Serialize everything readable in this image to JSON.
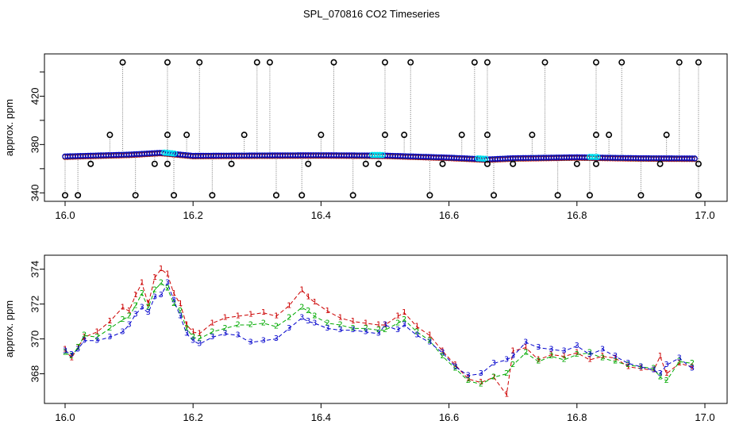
{
  "chart_data": [
    {
      "type": "scatter",
      "title": "SPL_070816  CO2 Timeseries",
      "xlabel": "",
      "ylabel": "approx. ppm",
      "xlim": [
        16.0,
        17.0
      ],
      "ylim": [
        333,
        455
      ],
      "xticks": [
        "16.0",
        "16.2",
        "16.4",
        "16.6",
        "16.8",
        "17.0"
      ],
      "xtick_values": [
        16.0,
        16.2,
        16.4,
        16.6,
        16.8,
        17.0
      ],
      "yticks": [
        "340",
        "380",
        "420"
      ],
      "ytick_values": [
        340,
        380,
        420
      ],
      "yticks_minor": [
        360,
        400,
        440
      ],
      "grid": false,
      "colors": {
        "series1": "#cc0000",
        "series2": "#00aa00",
        "series3": "#0000cc",
        "highlight": "#00e5ee",
        "outlier": "#000000",
        "trace": "#777777"
      },
      "series": [
        {
          "values": [
            [
              16.0,
              370.0
            ],
            [
              16.1,
              371.5
            ],
            [
              16.15,
              373.0
            ],
            [
              16.2,
              370.5
            ],
            [
              16.3,
              370.8
            ],
            [
              16.4,
              371.0
            ],
            [
              16.5,
              370.7
            ],
            [
              16.6,
              369.0
            ],
            [
              16.66,
              367.5
            ],
            [
              16.7,
              368.5
            ],
            [
              16.8,
              369.3
            ],
            [
              16.9,
              368.5
            ],
            [
              16.98,
              368.3
            ]
          ]
        }
      ],
      "outliers": [
        [
          16.0,
          338
        ],
        [
          16.02,
          338
        ],
        [
          16.04,
          364
        ],
        [
          16.07,
          388
        ],
        [
          16.09,
          448
        ],
        [
          16.11,
          338
        ],
        [
          16.14,
          364
        ],
        [
          16.16,
          364
        ],
        [
          16.16,
          388
        ],
        [
          16.16,
          448
        ],
        [
          16.17,
          338
        ],
        [
          16.19,
          388
        ],
        [
          16.21,
          448
        ],
        [
          16.23,
          338
        ],
        [
          16.26,
          364
        ],
        [
          16.28,
          388
        ],
        [
          16.3,
          448
        ],
        [
          16.32,
          448
        ],
        [
          16.33,
          338
        ],
        [
          16.37,
          338
        ],
        [
          16.38,
          364
        ],
        [
          16.4,
          388
        ],
        [
          16.42,
          448
        ],
        [
          16.45,
          338
        ],
        [
          16.47,
          364
        ],
        [
          16.49,
          364
        ],
        [
          16.5,
          388
        ],
        [
          16.5,
          448
        ],
        [
          16.53,
          388
        ],
        [
          16.54,
          448
        ],
        [
          16.57,
          338
        ],
        [
          16.59,
          364
        ],
        [
          16.62,
          388
        ],
        [
          16.64,
          448
        ],
        [
          16.66,
          388
        ],
        [
          16.66,
          448
        ],
        [
          16.66,
          364
        ],
        [
          16.67,
          338
        ],
        [
          16.7,
          364
        ],
        [
          16.73,
          388
        ],
        [
          16.75,
          448
        ],
        [
          16.77,
          338
        ],
        [
          16.8,
          364
        ],
        [
          16.82,
          338
        ],
        [
          16.83,
          364
        ],
        [
          16.83,
          388
        ],
        [
          16.83,
          448
        ],
        [
          16.85,
          388
        ],
        [
          16.87,
          448
        ],
        [
          16.9,
          338
        ],
        [
          16.93,
          364
        ],
        [
          16.94,
          388
        ],
        [
          16.96,
          448
        ],
        [
          16.99,
          448
        ],
        [
          16.99,
          364
        ],
        [
          16.99,
          338
        ]
      ]
    },
    {
      "type": "scatter",
      "title": "",
      "xlabel": "",
      "ylabel": "approx. ppm",
      "xlim": [
        16.0,
        17.0
      ],
      "ylim": [
        366.3,
        374.8
      ],
      "xticks": [
        "16.0",
        "16.2",
        "16.4",
        "16.6",
        "16.8",
        "17.0"
      ],
      "xtick_values": [
        16.0,
        16.2,
        16.4,
        16.6,
        16.8,
        17.0
      ],
      "yticks": [
        "368",
        "370",
        "372",
        "374"
      ],
      "ytick_values": [
        368,
        370,
        372,
        374
      ],
      "grid": false,
      "series": [
        {
          "name": "1",
          "color": "#cc0000",
          "values": [
            [
              16.0,
              369.4
            ],
            [
              16.01,
              368.9
            ],
            [
              16.02,
              369.5
            ],
            [
              16.03,
              370.1
            ],
            [
              16.05,
              370.4
            ],
            [
              16.07,
              371.0
            ],
            [
              16.09,
              371.8
            ],
            [
              16.1,
              371.6
            ],
            [
              16.11,
              372.5
            ],
            [
              16.12,
              373.2
            ],
            [
              16.13,
              372.0
            ],
            [
              16.14,
              373.5
            ],
            [
              16.15,
              374.0
            ],
            [
              16.16,
              373.7
            ],
            [
              16.17,
              372.6
            ],
            [
              16.18,
              372.0
            ],
            [
              16.19,
              370.8
            ],
            [
              16.2,
              370.4
            ],
            [
              16.21,
              370.3
            ],
            [
              16.23,
              370.9
            ],
            [
              16.25,
              371.2
            ],
            [
              16.27,
              371.3
            ],
            [
              16.29,
              371.4
            ],
            [
              16.31,
              371.5
            ],
            [
              16.33,
              371.3
            ],
            [
              16.35,
              371.9
            ],
            [
              16.37,
              372.8
            ],
            [
              16.38,
              372.4
            ],
            [
              16.39,
              372.1
            ],
            [
              16.41,
              371.6
            ],
            [
              16.43,
              371.2
            ],
            [
              16.45,
              371.0
            ],
            [
              16.47,
              370.9
            ],
            [
              16.49,
              370.8
            ],
            [
              16.5,
              370.8
            ],
            [
              16.52,
              371.3
            ],
            [
              16.53,
              371.5
            ],
            [
              16.55,
              370.7
            ],
            [
              16.57,
              370.2
            ],
            [
              16.59,
              369.3
            ],
            [
              16.61,
              368.5
            ],
            [
              16.63,
              367.7
            ],
            [
              16.65,
              367.5
            ],
            [
              16.67,
              367.8
            ],
            [
              16.69,
              366.8
            ],
            [
              16.7,
              369.3
            ],
            [
              16.72,
              369.5
            ],
            [
              16.74,
              368.8
            ],
            [
              16.76,
              369.1
            ],
            [
              16.78,
              369.0
            ],
            [
              16.8,
              369.2
            ],
            [
              16.82,
              368.8
            ],
            [
              16.84,
              369.0
            ],
            [
              16.86,
              368.9
            ],
            [
              16.88,
              368.4
            ],
            [
              16.9,
              368.3
            ],
            [
              16.92,
              368.2
            ],
            [
              16.93,
              369.0
            ],
            [
              16.94,
              368.0
            ],
            [
              16.96,
              368.6
            ],
            [
              16.98,
              368.4
            ]
          ]
        },
        {
          "name": "2",
          "color": "#00aa00",
          "values": [
            [
              16.0,
              369.2
            ],
            [
              16.01,
              369.0
            ],
            [
              16.02,
              369.5
            ],
            [
              16.03,
              370.2
            ],
            [
              16.05,
              370.1
            ],
            [
              16.07,
              370.6
            ],
            [
              16.09,
              371.1
            ],
            [
              16.1,
              371.3
            ],
            [
              16.11,
              371.9
            ],
            [
              16.12,
              372.6
            ],
            [
              16.13,
              371.8
            ],
            [
              16.14,
              372.8
            ],
            [
              16.15,
              373.2
            ],
            [
              16.16,
              372.9
            ],
            [
              16.17,
              372.0
            ],
            [
              16.18,
              371.6
            ],
            [
              16.19,
              370.6
            ],
            [
              16.2,
              370.1
            ],
            [
              16.21,
              370.0
            ],
            [
              16.23,
              370.4
            ],
            [
              16.25,
              370.6
            ],
            [
              16.27,
              370.8
            ],
            [
              16.29,
              370.8
            ],
            [
              16.31,
              370.9
            ],
            [
              16.33,
              370.7
            ],
            [
              16.35,
              371.2
            ],
            [
              16.37,
              371.8
            ],
            [
              16.38,
              371.6
            ],
            [
              16.39,
              371.3
            ],
            [
              16.41,
              370.9
            ],
            [
              16.43,
              370.8
            ],
            [
              16.45,
              370.6
            ],
            [
              16.47,
              370.6
            ],
            [
              16.49,
              370.5
            ],
            [
              16.5,
              370.5
            ],
            [
              16.52,
              370.9
            ],
            [
              16.53,
              371.1
            ],
            [
              16.55,
              370.4
            ],
            [
              16.57,
              369.9
            ],
            [
              16.59,
              369.0
            ],
            [
              16.61,
              368.3
            ],
            [
              16.63,
              367.6
            ],
            [
              16.65,
              367.4
            ],
            [
              16.67,
              367.8
            ],
            [
              16.69,
              368.0
            ],
            [
              16.7,
              368.5
            ],
            [
              16.72,
              369.2
            ],
            [
              16.74,
              368.7
            ],
            [
              16.76,
              369.0
            ],
            [
              16.78,
              368.8
            ],
            [
              16.8,
              369.1
            ],
            [
              16.82,
              369.2
            ],
            [
              16.84,
              368.9
            ],
            [
              16.86,
              368.7
            ],
            [
              16.88,
              368.5
            ],
            [
              16.9,
              368.4
            ],
            [
              16.92,
              368.3
            ],
            [
              16.93,
              367.8
            ],
            [
              16.94,
              367.6
            ],
            [
              16.96,
              368.7
            ],
            [
              16.98,
              368.6
            ]
          ]
        },
        {
          "name": "3",
          "color": "#0000cc",
          "values": [
            [
              16.0,
              369.3
            ],
            [
              16.01,
              369.1
            ],
            [
              16.02,
              369.4
            ],
            [
              16.03,
              369.9
            ],
            [
              16.05,
              369.9
            ],
            [
              16.07,
              370.1
            ],
            [
              16.09,
              370.4
            ],
            [
              16.1,
              370.8
            ],
            [
              16.11,
              371.4
            ],
            [
              16.12,
              371.8
            ],
            [
              16.13,
              371.5
            ],
            [
              16.14,
              372.4
            ],
            [
              16.15,
              372.5
            ],
            [
              16.16,
              373.2
            ],
            [
              16.17,
              372.2
            ],
            [
              16.18,
              371.3
            ],
            [
              16.19,
              370.3
            ],
            [
              16.2,
              369.9
            ],
            [
              16.21,
              369.7
            ],
            [
              16.23,
              370.1
            ],
            [
              16.25,
              370.3
            ],
            [
              16.27,
              370.2
            ],
            [
              16.29,
              369.8
            ],
            [
              16.31,
              369.9
            ],
            [
              16.33,
              370.0
            ],
            [
              16.35,
              370.6
            ],
            [
              16.37,
              371.2
            ],
            [
              16.38,
              371.0
            ],
            [
              16.39,
              370.9
            ],
            [
              16.41,
              370.6
            ],
            [
              16.43,
              370.5
            ],
            [
              16.45,
              370.5
            ],
            [
              16.47,
              370.4
            ],
            [
              16.49,
              370.3
            ],
            [
              16.5,
              370.8
            ],
            [
              16.52,
              370.5
            ],
            [
              16.53,
              370.8
            ],
            [
              16.55,
              370.2
            ],
            [
              16.57,
              369.8
            ],
            [
              16.59,
              369.2
            ],
            [
              16.61,
              368.4
            ],
            [
              16.63,
              367.9
            ],
            [
              16.65,
              368.0
            ],
            [
              16.67,
              368.6
            ],
            [
              16.69,
              368.8
            ],
            [
              16.7,
              369.0
            ],
            [
              16.72,
              369.8
            ],
            [
              16.74,
              369.5
            ],
            [
              16.76,
              369.4
            ],
            [
              16.78,
              369.3
            ],
            [
              16.8,
              369.6
            ],
            [
              16.82,
              369.1
            ],
            [
              16.84,
              369.4
            ],
            [
              16.86,
              369.0
            ],
            [
              16.88,
              368.6
            ],
            [
              16.9,
              368.4
            ],
            [
              16.92,
              368.2
            ],
            [
              16.93,
              368.0
            ],
            [
              16.94,
              368.5
            ],
            [
              16.96,
              368.9
            ],
            [
              16.98,
              368.3
            ]
          ]
        }
      ]
    }
  ]
}
